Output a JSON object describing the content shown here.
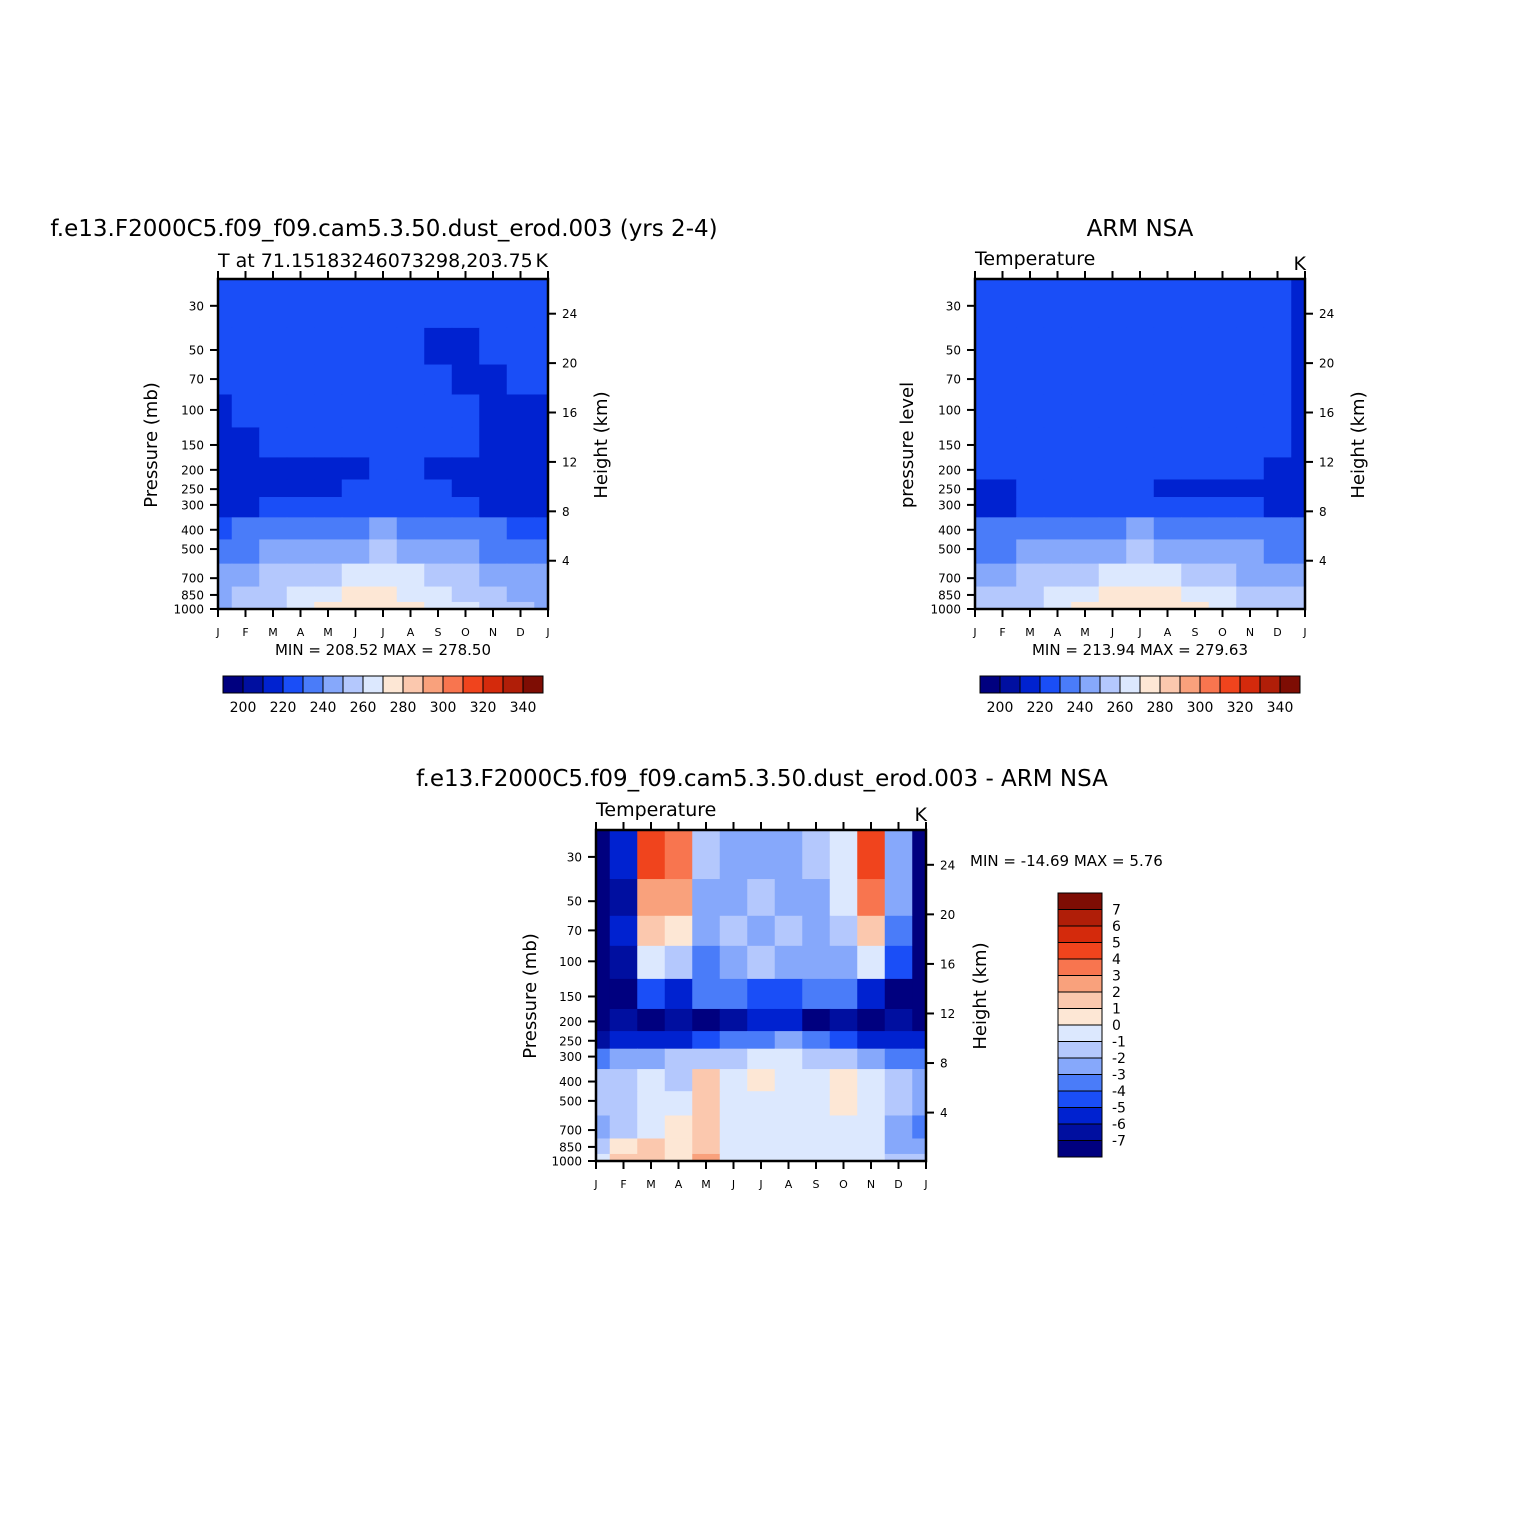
{
  "months": [
    "J",
    "F",
    "M",
    "A",
    "M",
    "J",
    "J",
    "A",
    "S",
    "O",
    "N",
    "D",
    "J"
  ],
  "pressure_ticks": [
    "30",
    "50",
    "70",
    "100",
    "150",
    "200",
    "250",
    "300",
    "400",
    "500",
    "700",
    "850",
    "1000"
  ],
  "height_ticks": [
    "24",
    "20",
    "16",
    "12",
    "8",
    "4"
  ],
  "panels": [
    {
      "title": "f.e13.F2000C5.f09_f09.cam5.3.50.dust_erod.003 (yrs 2-4)",
      "left_label": "T at 71.15183246073298,203.75",
      "right_label": "K",
      "ylabel": "Pressure (mb)",
      "y2label": "Height (km)",
      "minmax": "MIN = 208.52 MAX = 278.50",
      "colorbar_labels": [
        "200",
        "220",
        "240",
        "260",
        "280",
        "300",
        "320",
        "340"
      ]
    },
    {
      "title": "ARM NSA",
      "left_label": "Temperature",
      "right_label": "K",
      "ylabel": "pressure level",
      "y2label": "Height (km)",
      "minmax": "MIN = 213.94 MAX = 279.63",
      "colorbar_labels": [
        "200",
        "220",
        "240",
        "260",
        "280",
        "300",
        "320",
        "340"
      ]
    },
    {
      "title": "f.e13.F2000C5.f09_f09.cam5.3.50.dust_erod.003 - ARM NSA",
      "left_label": "Temperature",
      "right_label": "K",
      "ylabel": "Pressure (mb)",
      "y2label": "Height (km)",
      "minmax": "MIN = -14.69 MAX = 5.76",
      "colorbar_labels": [
        "7",
        "6",
        "5",
        "4",
        "3",
        "2",
        "1",
        "0",
        "-1",
        "-2",
        "-3",
        "-4",
        "-5",
        "-6",
        "-7"
      ]
    }
  ],
  "chart_data": [
    {
      "type": "heatmap",
      "title": "f.e13.F2000C5.f09_f09.cam5.3.50.dust_erod.003 (yrs 2-4)",
      "xlabel": "",
      "ylabel": "Pressure (mb)",
      "y2label": "Height (km)",
      "units": "K",
      "x": [
        "J",
        "F",
        "M",
        "A",
        "M",
        "J",
        "J",
        "A",
        "S",
        "O",
        "N",
        "D",
        "J"
      ],
      "pressure_levels": [
        30,
        50,
        70,
        100,
        150,
        200,
        250,
        300,
        400,
        500,
        700,
        850,
        1000
      ],
      "ylim": [
        1000,
        22
      ],
      "contour_levels": [
        190,
        200,
        210,
        220,
        230,
        240,
        250,
        260,
        270,
        280,
        290,
        300,
        310,
        320,
        330,
        340,
        350
      ],
      "min": 208.52,
      "max": 278.5,
      "values": [
        [
          223,
          225,
          227,
          228,
          227,
          225,
          224,
          222,
          221,
          221,
          221,
          222,
          223
        ],
        [
          222,
          226,
          228,
          229,
          228,
          225,
          223,
          221,
          219,
          219,
          220,
          221,
          222
        ],
        [
          221,
          226,
          228,
          229,
          228,
          226,
          224,
          222,
          220,
          219,
          219,
          220,
          221
        ],
        [
          218,
          225,
          228,
          229,
          228,
          227,
          225,
          224,
          225,
          221,
          219,
          218,
          218
        ],
        [
          216,
          219,
          223,
          226,
          227,
          227,
          226,
          225,
          224,
          222,
          219,
          217,
          216
        ],
        [
          214,
          215,
          216,
          217,
          218,
          219,
          220,
          220,
          219,
          218,
          217,
          215,
          214
        ],
        [
          215,
          215,
          216,
          218,
          219,
          220,
          221,
          221,
          220,
          218,
          216,
          215,
          215
        ],
        [
          218,
          218,
          220,
          222,
          224,
          226,
          228,
          226,
          224,
          222,
          219,
          217,
          218
        ],
        [
          229,
          230,
          233,
          235,
          237,
          239,
          240,
          238,
          236,
          233,
          230,
          229,
          229
        ],
        [
          237,
          238,
          241,
          244,
          246,
          249,
          250,
          248,
          246,
          242,
          239,
          237,
          237
        ],
        [
          246,
          247,
          250,
          254,
          258,
          261,
          262,
          261,
          257,
          252,
          248,
          246,
          246
        ],
        [
          249,
          251,
          255,
          260,
          266,
          270,
          271,
          269,
          265,
          258,
          252,
          249,
          249
        ],
        [
          249,
          251,
          256,
          262,
          270,
          276,
          278,
          274,
          268,
          260,
          253,
          250,
          249
        ]
      ]
    },
    {
      "type": "heatmap",
      "title": "ARM NSA",
      "xlabel": "",
      "ylabel": "pressure level",
      "y2label": "Height (km)",
      "units": "K",
      "x": [
        "J",
        "F",
        "M",
        "A",
        "M",
        "J",
        "J",
        "A",
        "S",
        "O",
        "N",
        "D",
        "J"
      ],
      "pressure_levels": [
        30,
        50,
        70,
        100,
        150,
        200,
        250,
        300,
        400,
        500,
        700,
        850,
        1000
      ],
      "ylim": [
        1000,
        22
      ],
      "contour_levels": [
        190,
        200,
        210,
        220,
        230,
        240,
        250,
        260,
        270,
        280,
        290,
        300,
        310,
        320,
        330,
        340,
        350
      ],
      "min": 213.94,
      "max": 279.63,
      "values": [
        [
          226,
          227,
          228,
          229,
          229,
          228,
          228,
          229,
          227,
          224,
          222,
          222,
          219
        ],
        [
          226,
          227,
          228,
          229,
          229,
          228,
          228,
          227,
          225,
          223,
          222,
          222,
          219
        ],
        [
          226,
          227,
          228,
          229,
          229,
          228,
          228,
          227,
          225,
          223,
          222,
          222,
          219
        ],
        [
          226,
          227,
          228,
          229,
          229,
          228,
          228,
          227,
          226,
          224,
          222,
          222,
          219
        ],
        [
          225,
          226,
          227,
          228,
          228,
          228,
          228,
          227,
          226,
          225,
          222,
          221,
          219
        ],
        [
          222,
          224,
          226,
          227,
          227,
          226,
          226,
          226,
          225,
          224,
          221,
          219,
          218
        ],
        [
          218,
          219,
          222,
          224,
          224,
          224,
          223,
          219,
          218,
          218,
          218,
          218,
          218
        ],
        [
          217,
          218,
          220,
          222,
          224,
          226,
          227,
          225,
          223,
          222,
          220,
          218,
          217
        ],
        [
          230,
          231,
          233,
          235,
          237,
          239,
          240,
          239,
          237,
          234,
          232,
          230,
          230
        ],
        [
          238,
          239,
          242,
          244,
          247,
          249,
          250,
          249,
          246,
          243,
          240,
          238,
          238
        ],
        [
          247,
          248,
          251,
          255,
          258,
          261,
          263,
          261,
          258,
          253,
          249,
          247,
          247
        ],
        [
          251,
          253,
          257,
          262,
          267,
          271,
          272,
          270,
          266,
          260,
          254,
          251,
          251
        ],
        [
          252,
          254,
          259,
          265,
          272,
          277,
          279,
          277,
          271,
          263,
          256,
          252,
          252
        ]
      ]
    },
    {
      "type": "heatmap",
      "title": "f.e13.F2000C5.f09_f09.cam5.3.50.dust_erod.003 - ARM NSA",
      "xlabel": "",
      "ylabel": "Pressure (mb)",
      "y2label": "Height (km)",
      "units": "K",
      "x": [
        "J",
        "F",
        "M",
        "A",
        "M",
        "J",
        "J",
        "A",
        "S",
        "O",
        "N",
        "D",
        "J"
      ],
      "pressure_levels": [
        30,
        50,
        70,
        100,
        150,
        200,
        250,
        300,
        400,
        500,
        700,
        850,
        1000
      ],
      "ylim": [
        1000,
        22
      ],
      "contour_levels": [
        -8,
        -7,
        -6,
        -5,
        -4,
        -3,
        -2,
        -1,
        0,
        1,
        2,
        3,
        4,
        5,
        6,
        7,
        8
      ],
      "min": -14.69,
      "max": 5.76,
      "values": [
        [
          -9,
          -6,
          4,
          3,
          -2,
          -3,
          -3,
          -3,
          -2,
          -1,
          4,
          -3,
          -9
        ],
        [
          -9,
          -7,
          2,
          2,
          -3,
          -3,
          -2,
          -3,
          -3,
          -1,
          3,
          -3,
          -9
        ],
        [
          -9,
          -6,
          1,
          0,
          -3,
          -2,
          -3,
          -2,
          -3,
          -2,
          1,
          -4,
          -9
        ],
        [
          -9,
          -7,
          -1,
          -2,
          -4,
          -3,
          -2,
          -3,
          -3,
          -3,
          -1,
          -5,
          -9
        ],
        [
          -9,
          -8,
          -5,
          -6,
          -4,
          -4,
          -5,
          -5,
          -4,
          -4,
          -6,
          -8,
          -9
        ],
        [
          -8,
          -7,
          -9,
          -7,
          -9,
          -7,
          -6,
          -6,
          -9,
          -7,
          -8,
          -7,
          -8
        ],
        [
          -7,
          -6,
          -6,
          -6,
          -5,
          -4,
          -4,
          -3,
          -4,
          -5,
          -6,
          -6,
          -6
        ],
        [
          -4,
          -3,
          -3,
          -2,
          -2,
          -2,
          -1,
          -1,
          -2,
          -2,
          -3,
          -4,
          -4
        ],
        [
          -2,
          -2,
          -1,
          -2,
          1,
          -1,
          0,
          -1,
          -1,
          0,
          -1,
          -2,
          -3
        ],
        [
          -2,
          -2,
          -1,
          -1,
          1,
          -1,
          -1,
          -1,
          -1,
          0,
          -1,
          -2,
          -3
        ],
        [
          -3,
          -2,
          -1,
          0,
          1,
          -1,
          -1,
          -1,
          -1,
          -1,
          -1,
          -3,
          -4
        ],
        [
          -2,
          0,
          1,
          0,
          1,
          -1,
          -1,
          -1,
          -1,
          -1,
          -1,
          -3,
          -3
        ],
        [
          -1,
          1,
          1,
          0,
          2,
          -1,
          -1,
          -1,
          -1,
          -1,
          -1,
          -2,
          -2
        ]
      ]
    }
  ]
}
